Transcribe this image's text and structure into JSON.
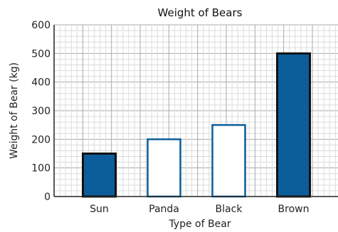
{
  "chart_data": {
    "type": "bar",
    "title": "Weight of Bears",
    "xlabel": "Type of Bear",
    "ylabel": "Weight of Bear (kg)",
    "categories": [
      "Sun",
      "Panda",
      "Black",
      "Brown"
    ],
    "values": [
      150,
      200,
      250,
      500
    ],
    "filled": [
      true,
      false,
      false,
      true
    ],
    "ylim": [
      0,
      600
    ],
    "yticks": [
      "0",
      "100",
      "200",
      "300",
      "400",
      "500",
      "600"
    ],
    "grid": true,
    "colors": {
      "bar_fill": "#0b5e99",
      "bar_outline_filled": "#111111",
      "bar_outline_hollow": "#0b5e99"
    }
  }
}
